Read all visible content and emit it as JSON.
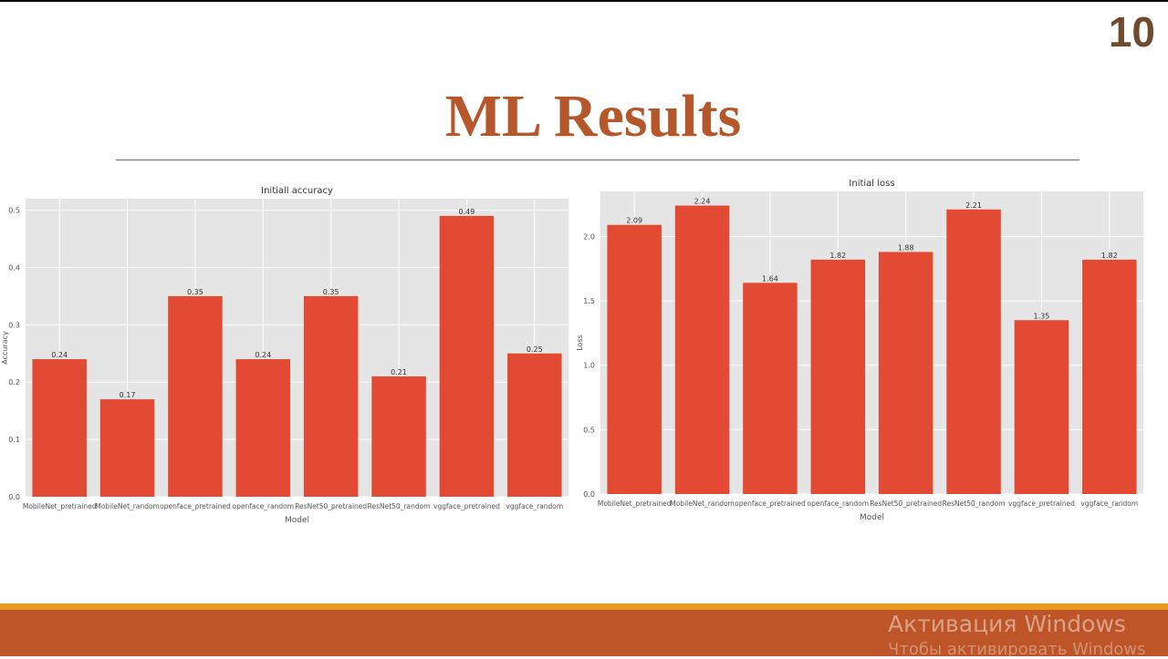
{
  "slide": {
    "page_number": "10",
    "title": "ML Results"
  },
  "watermark": {
    "line1": "Активация Windows",
    "line2": "Чтобы активировать Windows"
  },
  "colors": {
    "title": "#b5562b",
    "page_number": "#6e4a2e",
    "bar": "#e24a33",
    "plot_bg": "#e5e5e5",
    "footer_band": "#bd5528",
    "footer_strip": "#e69a1e"
  },
  "chart_data": [
    {
      "type": "bar",
      "title": "Initiall accuracy",
      "xlabel": "Model",
      "ylabel": "Accuracy",
      "categories": [
        "MobileNet_pretrained",
        "MobileNet_random",
        "openface_pretrained",
        "openface_random",
        "ResNet50_pretrained",
        "ResNet50_random",
        "vggface_pretrained",
        "vggface_random"
      ],
      "values": [
        0.24,
        0.17,
        0.35,
        0.24,
        0.35,
        0.21,
        0.49,
        0.25
      ],
      "value_labels": [
        "0.24",
        "0.17",
        "0.35",
        "0.24",
        "0.35",
        "0.21",
        "0.49",
        "0.25"
      ],
      "yticks": [
        "0.0",
        "0.1",
        "0.2",
        "0.3",
        "0.4",
        "0.5"
      ],
      "ylim": [
        0,
        0.52
      ],
      "grid": true
    },
    {
      "type": "bar",
      "title": "Initial loss",
      "xlabel": "Model",
      "ylabel": "Loss",
      "categories": [
        "MobileNet_pretrained",
        "MobileNet_random",
        "openface_pretrained",
        "openface_random",
        "ResNet50_pretrained",
        "ResNet50_random",
        "vggface_pretrained",
        "vggface_random"
      ],
      "values": [
        2.09,
        2.24,
        1.64,
        1.82,
        1.88,
        2.21,
        1.35,
        1.82
      ],
      "value_labels": [
        "2.09",
        "2.24",
        "1.64",
        "1.82",
        "1.88",
        "2.21",
        "1.35",
        "1.82"
      ],
      "yticks": [
        "0.0",
        "0.5",
        "1.0",
        "1.5",
        "2.0"
      ],
      "ylim": [
        0,
        2.35
      ],
      "grid": true
    }
  ]
}
